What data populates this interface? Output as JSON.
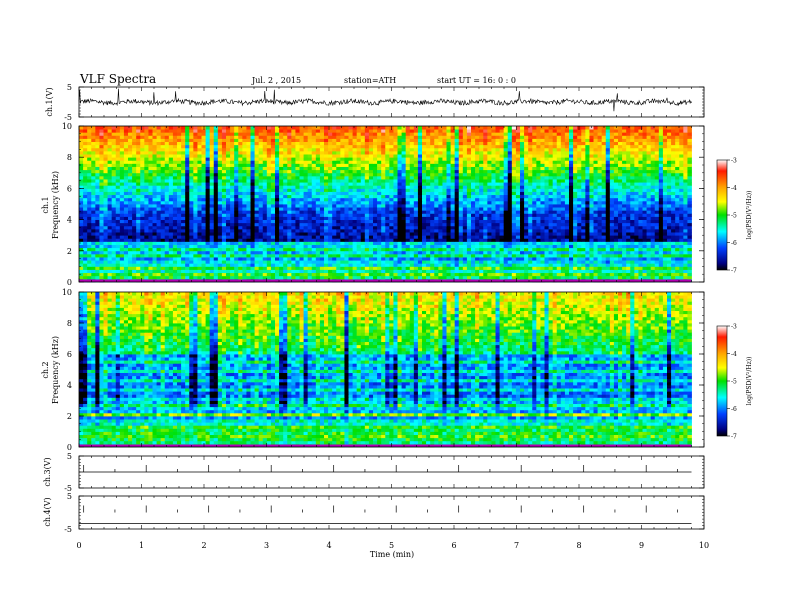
{
  "header": {
    "title": "VLF Spectra",
    "date": "Jul.  2  , 2015",
    "station": "station=ATH",
    "start": "start  UT  =    16: 0  : 0"
  },
  "colorbar": {
    "label": "log(PSD(V²/Hz))",
    "ticks": [
      -3,
      -4,
      -5,
      -6,
      -7
    ],
    "colors": [
      "#ffffff",
      "#ff1a00",
      "#ffa500",
      "#ffff00",
      "#00e000",
      "#00ffff",
      "#0040ff",
      "#000080",
      "#000000"
    ]
  },
  "chart_data": {
    "type": "heatmap",
    "title": "VLF Spectra",
    "xlabel": "Time  (min)",
    "xlim": [
      0,
      10
    ],
    "x_ticks": [
      0,
      1,
      2,
      3,
      4,
      5,
      6,
      7,
      8,
      9,
      10
    ],
    "data_end_min": 9.8,
    "panels": [
      {
        "id": "ch1-wave",
        "type": "line",
        "ylabel": "ch.1(V)",
        "y_ticks": [
          5,
          -5
        ],
        "ylim": [
          -5,
          5
        ]
      },
      {
        "id": "ch1-spec",
        "type": "heatmap",
        "ylabel": "Frequency  (kHz)",
        "channel": "ch.1",
        "y_ticks": [
          0,
          2,
          4,
          6,
          8,
          10
        ],
        "ylim": [
          0,
          10
        ],
        "zlim": [
          -7,
          -3
        ]
      },
      {
        "id": "ch2-spec",
        "type": "heatmap",
        "ylabel": "Frequency  (kHz)",
        "channel": "ch.2",
        "y_ticks": [
          0,
          2,
          4,
          6,
          8,
          10
        ],
        "ylim": [
          0,
          10
        ],
        "zlim": [
          -7,
          -3
        ]
      },
      {
        "id": "ch3-wave",
        "type": "line",
        "ylabel": "ch.3(V)",
        "y_ticks": [
          5,
          -5
        ],
        "ylim": [
          -5,
          5
        ]
      },
      {
        "id": "ch4-wave",
        "type": "line",
        "ylabel": "ch.4(V)",
        "y_ticks": [
          5,
          -5
        ],
        "ylim": [
          -5,
          5
        ]
      }
    ]
  }
}
